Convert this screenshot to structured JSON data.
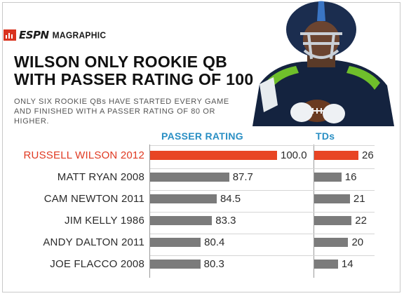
{
  "brand": {
    "logo": "ESPN",
    "sub": "MAGRAPHIC"
  },
  "title_line1": "WILSON ONLY ROOKIE QB",
  "title_line2": "WITH PASSER RATING OF 100",
  "subtitle": "ONLY SIX ROOKIE QBs HAVE STARTED EVERY GAME AND FINISHED WITH A PASSER RATING OF 80 OR HIGHER.",
  "colors": {
    "highlight": "#e84524",
    "bar": "#7b7b7b",
    "header": "#2a8fc4",
    "brand": "#d9331f"
  },
  "chart_data": {
    "type": "bar",
    "orientation": "horizontal",
    "categories": [
      "RUSSELL WILSON 2012",
      "MATT RYAN 2008",
      "CAM NEWTON 2011",
      "JIM KELLY 1986",
      "ANDY DALTON 2011",
      "JOE FLACCO 2008"
    ],
    "highlight_index": 0,
    "series": [
      {
        "name": "PASSER RATING",
        "values": [
          100.0,
          87.7,
          84.5,
          83.3,
          80.4,
          80.3
        ],
        "labels": [
          "100.0",
          "87.7",
          "84.5",
          "83.3",
          "80.4",
          "80.3"
        ]
      },
      {
        "name": "TDs",
        "values": [
          26,
          16,
          21,
          22,
          20,
          14
        ],
        "labels": [
          "26",
          "16",
          "21",
          "22",
          "20",
          "14"
        ]
      }
    ],
    "title": "WILSON ONLY ROOKIE QB WITH PASSER RATING OF 100",
    "legend": "none",
    "grid": false
  }
}
